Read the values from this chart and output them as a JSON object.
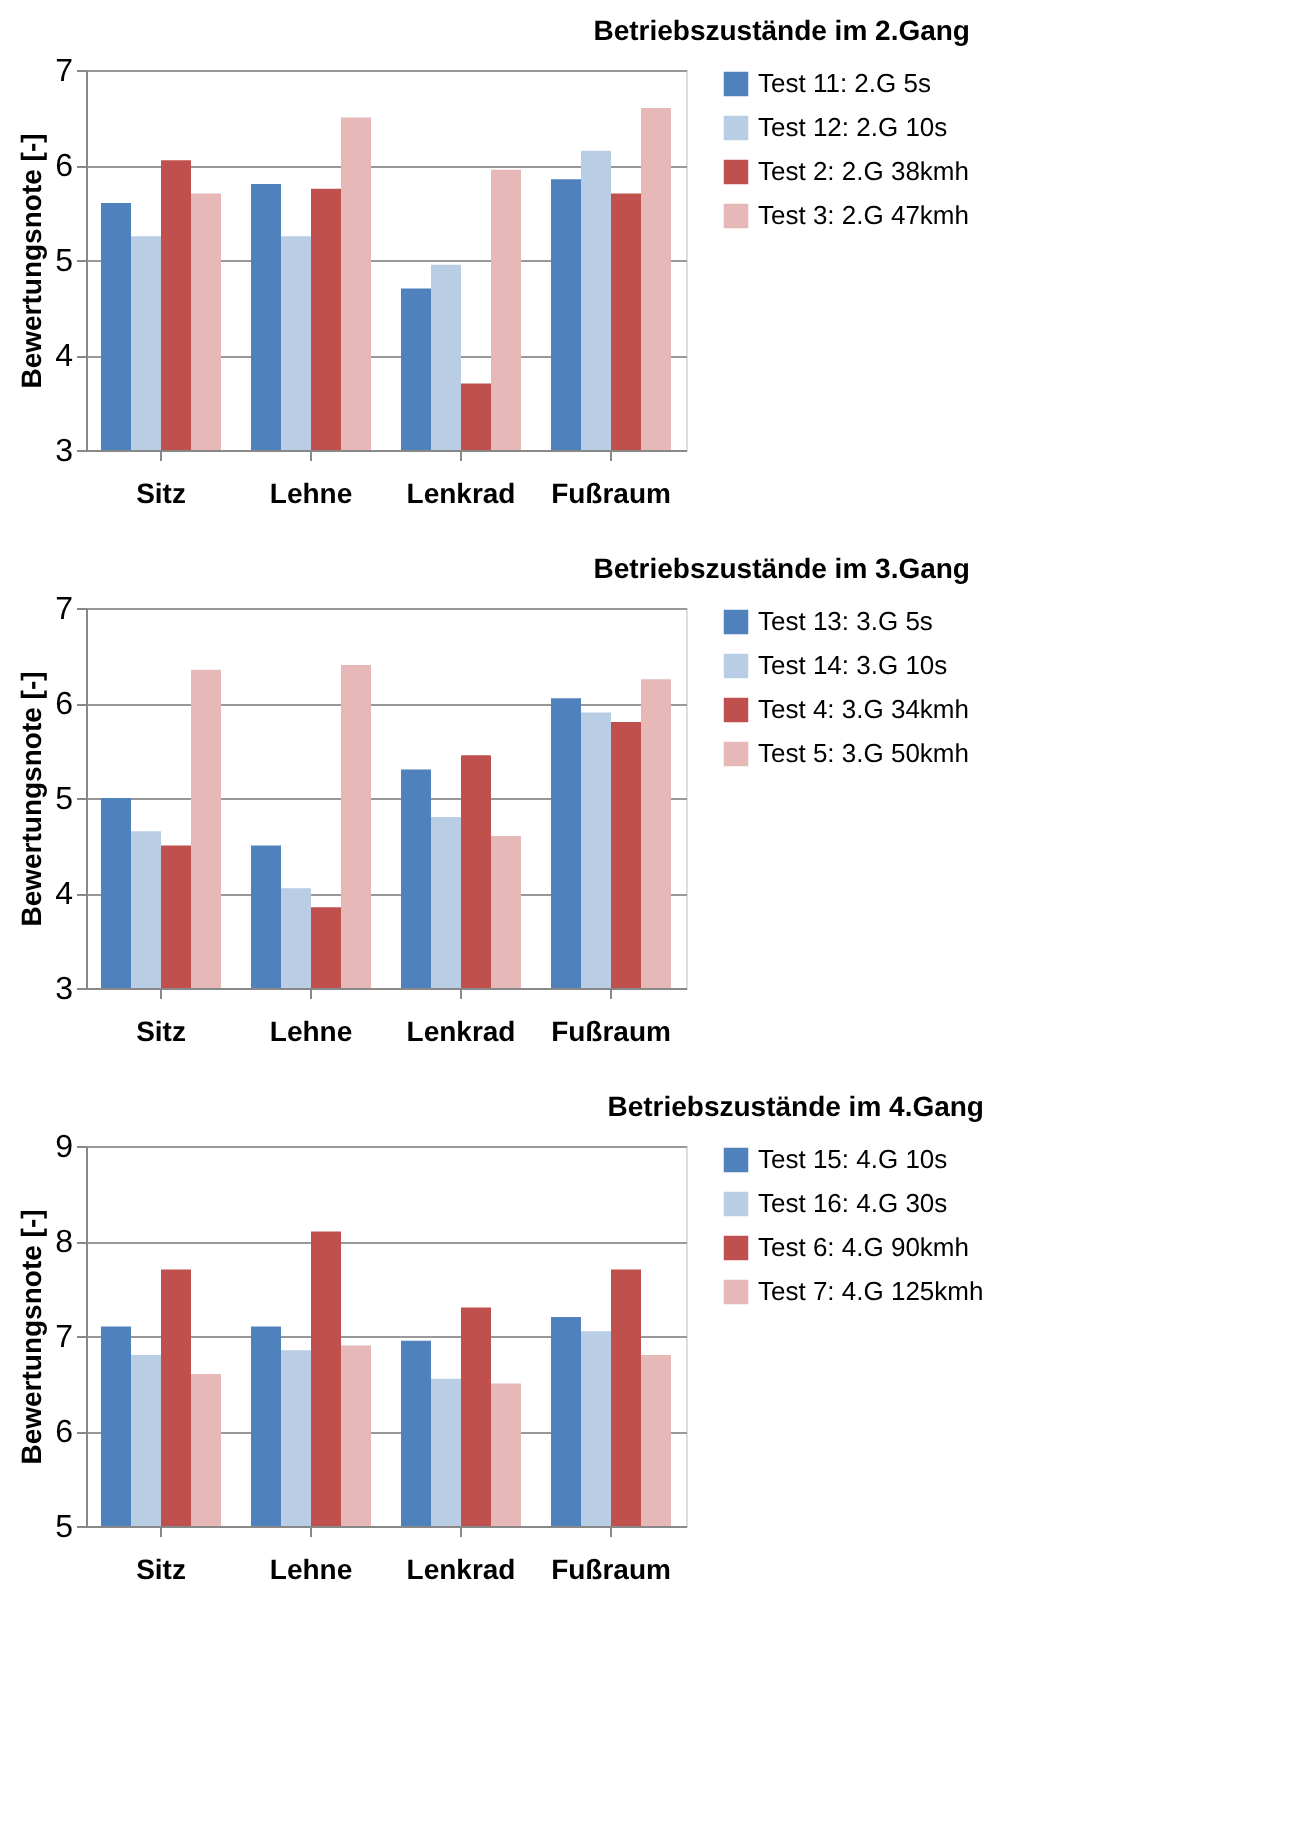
{
  "chart_data": [
    {
      "type": "bar",
      "title": "Betriebszustände im 2.Gang",
      "ylabel": "Bewertungsnote [-]",
      "categories": [
        "Sitz",
        "Lehne",
        "Lenkrad",
        "Fußraum"
      ],
      "ylim": [
        3,
        7
      ],
      "yticks": [
        3,
        4,
        5,
        6,
        7
      ],
      "grid": "y",
      "legend": "right",
      "series": [
        {
          "name": "Test 11: 2.G 5s",
          "color": "#4f81bd",
          "values": [
            5.6,
            5.8,
            4.7,
            5.85
          ]
        },
        {
          "name": "Test 12: 2.G 10s",
          "color": "#b9cde5",
          "values": [
            5.25,
            5.25,
            4.95,
            6.15
          ]
        },
        {
          "name": "Test 2: 2.G 38kmh",
          "color": "#c0504d",
          "values": [
            6.05,
            5.75,
            3.7,
            5.7
          ]
        },
        {
          "name": "Test 3: 2.G 47kmh",
          "color": "#e6b9b8",
          "values": [
            5.7,
            6.5,
            5.95,
            6.6
          ]
        }
      ]
    },
    {
      "type": "bar",
      "title": "Betriebszustände im  3.Gang",
      "ylabel": "Bewertungsnote [-]",
      "categories": [
        "Sitz",
        "Lehne",
        "Lenkrad",
        "Fußraum"
      ],
      "ylim": [
        3,
        7
      ],
      "yticks": [
        3,
        4,
        5,
        6,
        7
      ],
      "grid": "y",
      "legend": "right",
      "series": [
        {
          "name": "Test 13: 3.G 5s",
          "color": "#4f81bd",
          "values": [
            5.0,
            4.5,
            5.3,
            6.05
          ]
        },
        {
          "name": "Test 14: 3.G 10s",
          "color": "#b9cde5",
          "values": [
            4.65,
            4.05,
            4.8,
            5.9
          ]
        },
        {
          "name": "Test 4: 3.G 34kmh",
          "color": "#c0504d",
          "values": [
            4.5,
            3.85,
            5.45,
            5.8
          ]
        },
        {
          "name": "Test 5: 3.G 50kmh",
          "color": "#e6b9b8",
          "values": [
            6.35,
            6.4,
            4.6,
            6.25
          ]
        }
      ]
    },
    {
      "type": "bar",
      "title": "Betriebszustände im  4.Gang",
      "ylabel": "Bewertungsnote [-]",
      "categories": [
        "Sitz",
        "Lehne",
        "Lenkrad",
        "Fußraum"
      ],
      "ylim": [
        5,
        9
      ],
      "yticks": [
        5,
        6,
        7,
        8,
        9
      ],
      "grid": "y",
      "legend": "right",
      "series": [
        {
          "name": "Test 15: 4.G 10s",
          "color": "#4f81bd",
          "values": [
            7.1,
            7.1,
            6.95,
            7.2
          ]
        },
        {
          "name": "Test 16: 4.G 30s",
          "color": "#b9cde5",
          "values": [
            6.8,
            6.85,
            6.55,
            7.05
          ]
        },
        {
          "name": "Test 6: 4.G 90kmh",
          "color": "#c0504d",
          "values": [
            7.7,
            8.1,
            7.3,
            7.7
          ]
        },
        {
          "name": "Test 7: 4.G 125kmh",
          "color": "#e6b9b8",
          "values": [
            6.6,
            6.9,
            6.5,
            6.8
          ]
        }
      ]
    }
  ]
}
